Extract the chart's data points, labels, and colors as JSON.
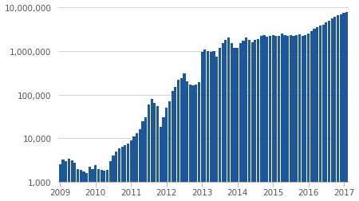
{
  "bar_color": "#1e5799",
  "background_color": "#ffffff",
  "grid_color": "#cccccc",
  "ylim_log": [
    1000,
    12000000
  ],
  "yticks": [
    1000,
    10000,
    100000,
    1000000,
    10000000
  ],
  "ytick_labels": [
    "1,000",
    "10,000",
    "100,000",
    "1,000,000",
    "10,000,000"
  ],
  "xtick_labels": [
    "2009",
    "2010",
    "2011",
    "2012",
    "2013",
    "2014",
    "2015",
    "2016",
    "2017"
  ],
  "monthly_values": [
    2500,
    3200,
    3000,
    3400,
    3100,
    2800,
    2000,
    1900,
    1700,
    1600,
    2200,
    2000,
    2400,
    2000,
    1900,
    1800,
    1900,
    3000,
    4000,
    5000,
    6000,
    6500,
    7000,
    7500,
    9000,
    11000,
    13000,
    16000,
    25000,
    30000,
    60000,
    80000,
    65000,
    55000,
    18000,
    30000,
    50000,
    70000,
    120000,
    150000,
    220000,
    240000,
    300000,
    200000,
    170000,
    160000,
    170000,
    190000,
    950000,
    1100000,
    1000000,
    950000,
    980000,
    750000,
    1200000,
    1500000,
    1800000,
    2000000,
    1500000,
    1200000,
    1200000,
    1500000,
    1700000,
    2000000,
    1800000,
    1600000,
    1800000,
    1900000,
    2200000,
    2300000,
    2100000,
    2200000,
    2300000,
    2200000,
    2200000,
    2500000,
    2300000,
    2200000,
    2300000,
    2200000,
    2300000,
    2400000,
    2200000,
    2300000,
    2500000,
    2800000,
    3200000,
    3500000,
    3800000,
    4000000,
    4500000,
    5000000,
    5500000,
    6000000,
    6500000,
    7000000,
    7500000,
    7800000
  ],
  "num_bars": 98,
  "start_year": 2009
}
